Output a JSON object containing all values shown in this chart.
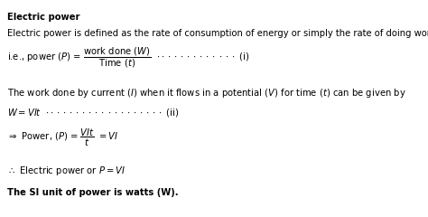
{
  "background_color": "#ffffff",
  "title": "Electric power",
  "line1": "Electric power is defined as the rate of consumption of energy or simply the rate of doing work.",
  "line7": "The SI unit of power is watts (W).",
  "fig_width": 4.74,
  "fig_height": 2.4,
  "dpi": 100
}
